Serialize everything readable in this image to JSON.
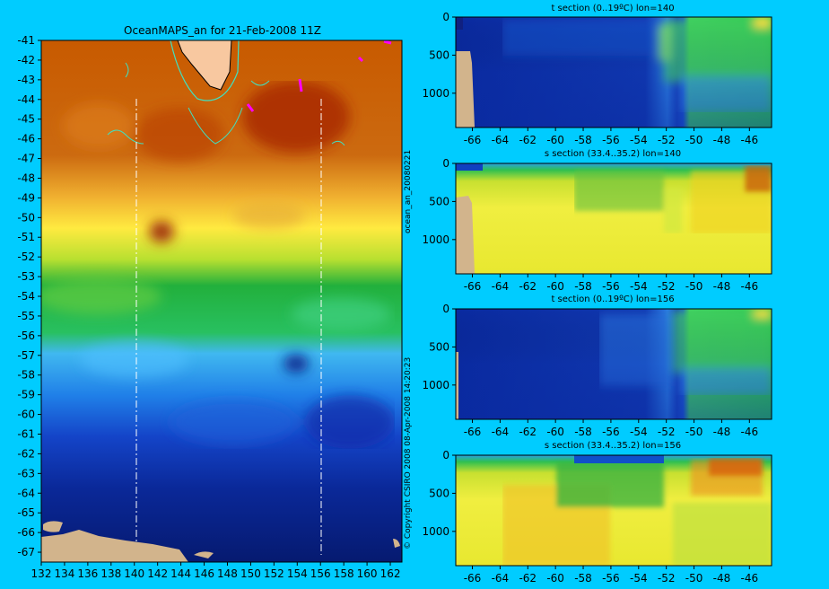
{
  "main_map": {
    "title": "OceanMAPS_an for 21-Feb-2008 11Z",
    "x_ticks": [
      "132",
      "134",
      "136",
      "138",
      "140",
      "142",
      "144",
      "146",
      "148",
      "150",
      "152",
      "154",
      "156",
      "158",
      "160",
      "162"
    ],
    "y_ticks": [
      "-41",
      "-42",
      "-43",
      "-44",
      "-45",
      "-46",
      "-47",
      "-48",
      "-49",
      "-50",
      "-51",
      "-52",
      "-53",
      "-54",
      "-55",
      "-56",
      "-57",
      "-58",
      "-59",
      "-60",
      "-61",
      "-62",
      "-63",
      "-64",
      "-65",
      "-66",
      "-67"
    ],
    "xlim": [
      132,
      163
    ],
    "ylim": [
      -67.5,
      -41
    ],
    "section_lines_lon": [
      140,
      156
    ],
    "side_label_1": "ocean_an_20080221",
    "side_label_2": "© Copyright CSIRO 2008   08-Apr-2008 14:20:23"
  },
  "colors": {
    "background": "#00ccff",
    "land": "#d2b48c",
    "contour": "#40e0c0",
    "marker": "#ff00ff"
  },
  "chart_data": [
    {
      "type": "heatmap",
      "title": "t section (0..19ºC) lon=140",
      "x_ticks": [
        "-66",
        "-64",
        "-62",
        "-60",
        "-58",
        "-56",
        "-54",
        "-52",
        "-50",
        "-48",
        "-46"
      ],
      "y_ticks": [
        "0",
        "500",
        "1000"
      ],
      "xlim": [
        -67.2,
        -44.4
      ],
      "ylim": [
        1450,
        0
      ]
    },
    {
      "type": "heatmap",
      "title": "s section (33.4..35.2) lon=140",
      "x_ticks": [
        "-66",
        "-64",
        "-62",
        "-60",
        "-58",
        "-56",
        "-54",
        "-52",
        "-50",
        "-48",
        "-46"
      ],
      "y_ticks": [
        "0",
        "500",
        "1000"
      ],
      "xlim": [
        -67.2,
        -44.4
      ],
      "ylim": [
        1450,
        0
      ]
    },
    {
      "type": "heatmap",
      "title": "t section (0..19ºC) lon=156",
      "x_ticks": [
        "-66",
        "-64",
        "-62",
        "-60",
        "-58",
        "-56",
        "-54",
        "-52",
        "-50",
        "-48",
        "-46"
      ],
      "y_ticks": [
        "0",
        "500",
        "1000"
      ],
      "xlim": [
        -67.2,
        -44.4
      ],
      "ylim": [
        1450,
        0
      ]
    },
    {
      "type": "heatmap",
      "title": "s section (33.4..35.2) lon=156",
      "x_ticks": [
        "-66",
        "-64",
        "-62",
        "-60",
        "-58",
        "-56",
        "-54",
        "-52",
        "-50",
        "-48",
        "-46"
      ],
      "y_ticks": [
        "0",
        "500",
        "1000"
      ],
      "xlim": [
        -67.2,
        -44.4
      ],
      "ylim": [
        1450,
        0
      ]
    }
  ]
}
